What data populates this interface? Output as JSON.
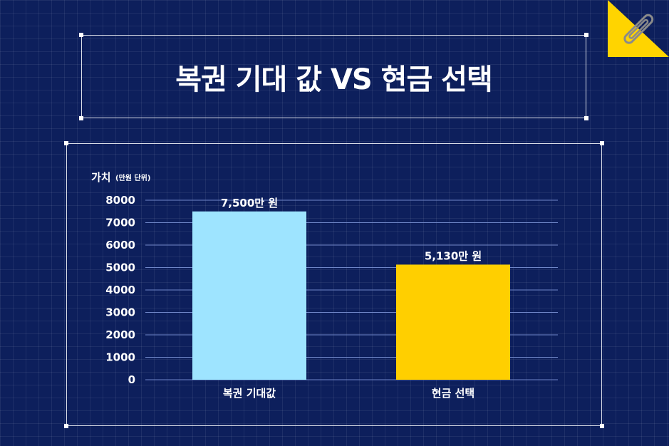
{
  "page": {
    "title": "복권 기대 값 VS 현금 선택"
  },
  "colors": {
    "background": "#0d1f5c",
    "lottery_bar": "#9ee4ff",
    "cash_bar": "#ffcf00",
    "gridline": "#6f86c8",
    "corner_tab": "#ffd400"
  },
  "icons": {
    "corner": "paperclip-icon"
  },
  "chart_data": {
    "type": "bar",
    "ylabel": "가치",
    "ylabel_unit": "(만원 단위)",
    "categories": [
      "복권 기대값",
      "현금 선택"
    ],
    "values": [
      7500,
      5130
    ],
    "data_labels": [
      "7,500만 원",
      "5,130만 원"
    ],
    "yticks": [
      "0",
      "1000",
      "2000",
      "3000",
      "4000",
      "5000",
      "6000",
      "7000",
      "8000"
    ],
    "ylim": [
      0,
      8000
    ],
    "grid": true,
    "legend": "none"
  }
}
